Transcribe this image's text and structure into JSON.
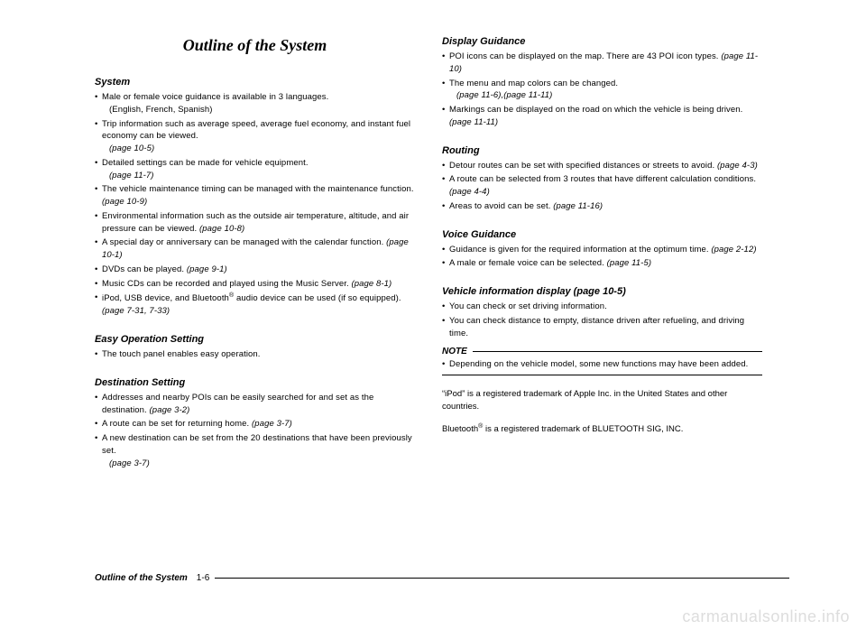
{
  "title": "Outline of the System",
  "left": {
    "system": {
      "head": "System",
      "items": [
        {
          "text": "Male or female voice guidance is available in 3 languages.",
          "sub": "(English, French, Spanish)"
        },
        {
          "text": "Trip information such as average speed, average fuel economy, and instant fuel economy can be viewed.",
          "ref": "(page 10-5)"
        },
        {
          "text": "Detailed settings can be made for vehicle equipment.",
          "ref": "(page 11-7)"
        },
        {
          "text": "The vehicle maintenance timing can be managed with the maintenance function.",
          "refInline": "(page 10-9)"
        },
        {
          "text": "Environmental information such as the outside air temperature, altitude, and air pressure can be viewed.",
          "refInline": "(page 10-8)"
        },
        {
          "text": "A special day or anniversary can be managed with the calendar function.",
          "refInline": "(page 10-1)"
        },
        {
          "text": "DVDs can be played.",
          "refInline": "(page 9-1)"
        },
        {
          "text": "Music CDs can be recorded and played using the Music Server.",
          "refInline": "(page 8-1)"
        },
        {
          "text": "iPod, USB device, and Bluetooth",
          "sup": "®",
          "text2": " audio device can be used (if so equipped).",
          "refInline": "(page 7-31, 7-33)"
        }
      ]
    },
    "easy": {
      "head": "Easy Operation Setting",
      "items": [
        {
          "text": "The touch panel enables easy operation."
        }
      ]
    },
    "dest": {
      "head": "Destination Setting",
      "items": [
        {
          "text": "Addresses and nearby POIs can be easily searched for and set as the destination.",
          "refInline": "(page 3-2)"
        },
        {
          "text": "A route can be set for returning home.",
          "refInline": "(page 3-7)"
        },
        {
          "text": "A new destination can be set from the 20 destinations that have been previously set.",
          "ref": "(page 3-7)"
        }
      ]
    }
  },
  "right": {
    "display": {
      "head": "Display Guidance",
      "items": [
        {
          "text": "POI icons can be displayed on the map. There are 43 POI icon types.",
          "refInline": "(page 11-10)"
        },
        {
          "text": "The menu and map colors can be changed.",
          "ref": "(page 11-6),(page 11-11)"
        },
        {
          "text": "Markings can be displayed on the road on which the vehicle is being driven.",
          "refInline": "(page 11-11)"
        }
      ]
    },
    "routing": {
      "head": "Routing",
      "items": [
        {
          "text": "Detour routes can be set with specified distances or streets to avoid.",
          "refInline": "(page 4-3)"
        },
        {
          "text": "A route can be selected from 3 routes that have different calculation conditions.",
          "refInline": "(page 4-4)"
        },
        {
          "text": "Areas to avoid can be set.",
          "refInline": "(page 11-16)"
        }
      ]
    },
    "voice": {
      "head": "Voice Guidance",
      "items": [
        {
          "text": "Guidance is given for the required information at the optimum time.",
          "refInline": "(page 2-12)"
        },
        {
          "text": "A male or female voice can be selected.",
          "refInline": "(page 11-5)"
        }
      ]
    },
    "vehicle": {
      "head": "Vehicle information display (page 10-5)",
      "items": [
        {
          "text": "You can check or set driving information."
        },
        {
          "text": "You can check distance to empty, distance driven after refueling, and driving time."
        }
      ]
    },
    "note": {
      "head": "NOTE",
      "items": [
        {
          "text": "Depending on the vehicle model, some new functions may have been added."
        }
      ]
    },
    "trademark1a": "“iPod” is a registered trademark of Apple Inc. in the United States and other countries.",
    "trademark2a": "Bluetooth",
    "trademark2sup": "®",
    "trademark2b": " is a registered trademark of BLUETOOTH SIG, INC."
  },
  "footer": {
    "label": "Outline of the System",
    "page": "1-6"
  },
  "watermark": "carmanualsonline.info"
}
